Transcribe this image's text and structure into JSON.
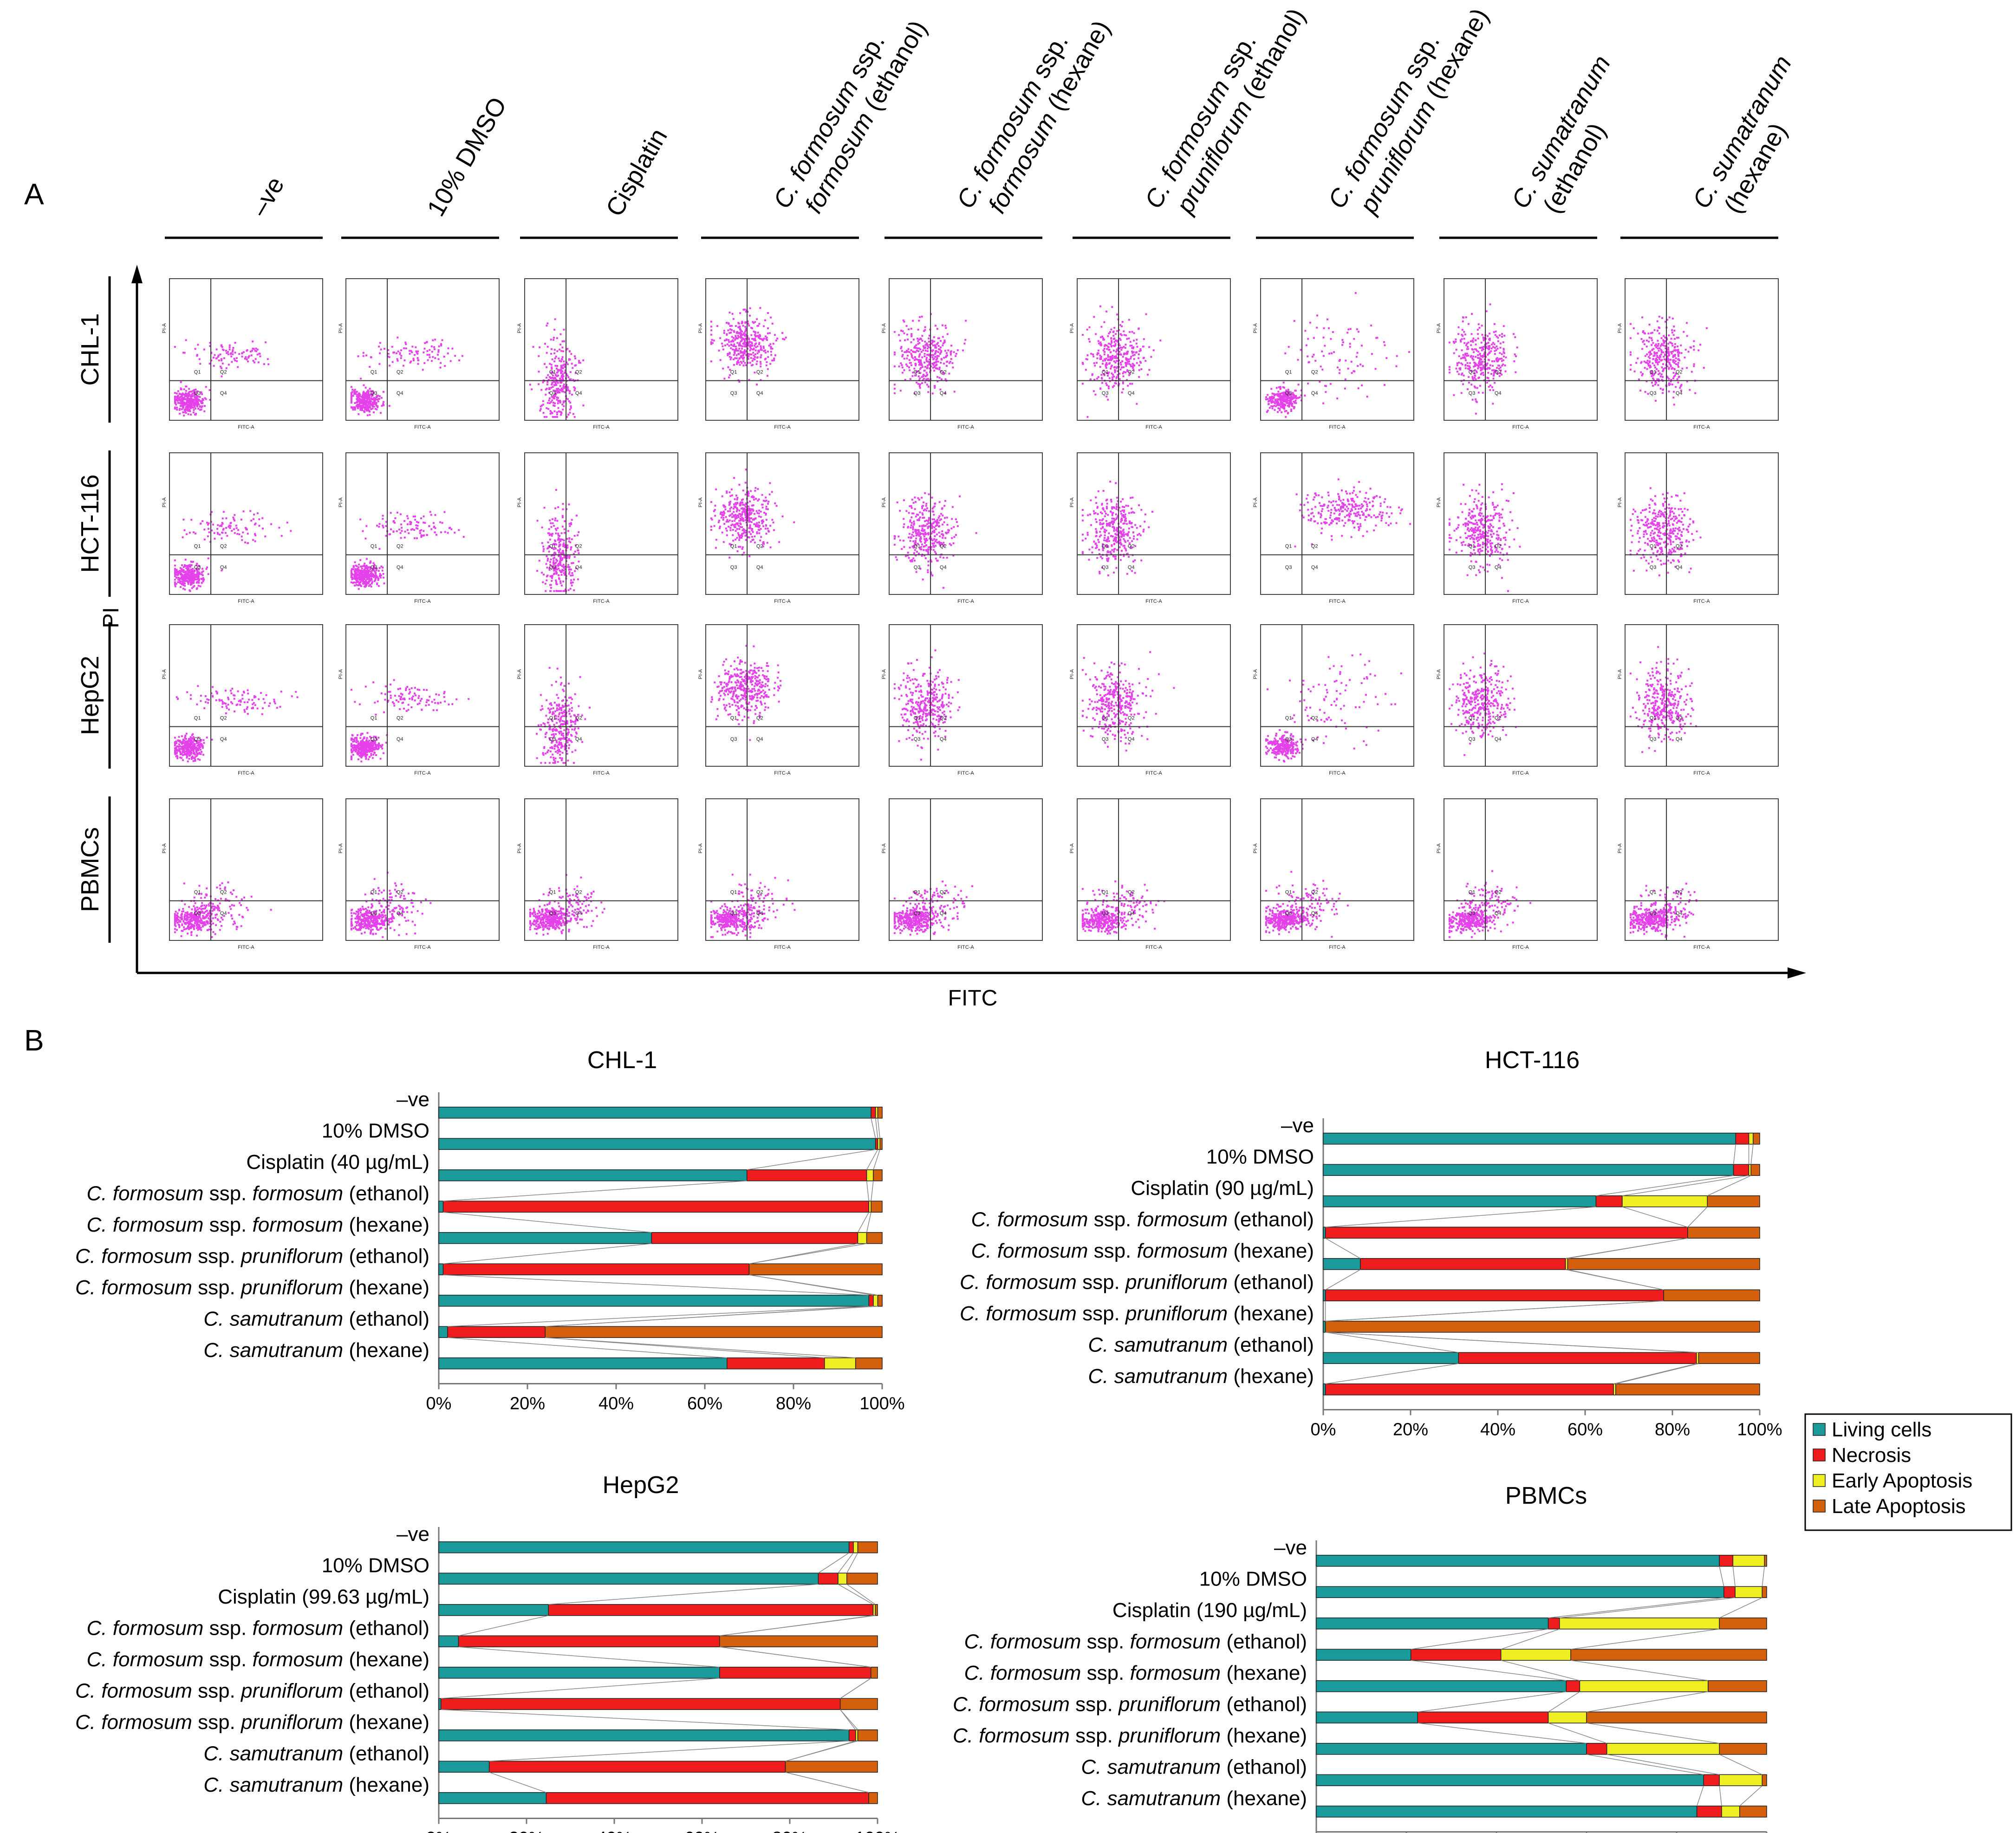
{
  "panel_a": {
    "letter": "A",
    "columns": [
      {
        "plain": "–ve"
      },
      {
        "plain": "10% DMSO"
      },
      {
        "plain": "Cisplatin"
      },
      {
        "line1_it": "C. formosum",
        "line1_rest": " ssp.",
        "line2_it": "formosum",
        "line2_rest": " (ethanol)"
      },
      {
        "line1_it": "C. formosum",
        "line1_rest": " ssp.",
        "line2_it": "formosum",
        "line2_rest": " (hexane)"
      },
      {
        "line1_it": "C. formosum",
        "line1_rest": " ssp.",
        "line2_it": "pruniflorum",
        "line2_rest": " (ethanol)"
      },
      {
        "line1_it": "C. formosum",
        "line1_rest": " ssp.",
        "line2_it": "pruniflorum",
        "line2_rest": " (hexane)"
      },
      {
        "line1_it": "C. sumatranum",
        "line1_rest": "",
        "line2_it": "",
        "line2_rest": "(ethanol)"
      },
      {
        "line1_it": "C. sumatranum",
        "line1_rest": "",
        "line2_it": "",
        "line2_rest": "(hexane)"
      }
    ],
    "rows": [
      "CHL-1",
      "HCT-116",
      "HepG2",
      "PBMCs"
    ],
    "y_axis_label": "PI",
    "x_axis_label": "FITC",
    "mini_x_label": "FITC-A",
    "mini_y_label": "PI-A",
    "quadrants": [
      "Q1",
      "Q2",
      "Q3",
      "Q4"
    ],
    "dot_color": "#e020e8"
  },
  "panel_b": {
    "letter": "B",
    "colors": {
      "living": "#1a9a9a",
      "necrosis": "#ee1c1c",
      "early": "#eeee22",
      "late": "#d4600e"
    },
    "legend": [
      "Living cells",
      "Necrosis",
      "Early Apoptosis",
      "Late Apoptosis"
    ],
    "x_ticks": [
      "0%",
      "20%",
      "40%",
      "60%",
      "80%",
      "100%"
    ]
  },
  "chart_data": [
    {
      "type": "bar",
      "stacked": true,
      "orientation": "horizontal",
      "title": "CHL-1",
      "categories": [
        [
          {
            "t": "–ve"
          }
        ],
        [
          {
            "t": "10% DMSO"
          }
        ],
        [
          {
            "t": "Cisplatin (40 µg/mL)"
          }
        ],
        [
          {
            "t": "C. formosum",
            "i": true
          },
          {
            "t": " ssp. "
          },
          {
            "t": "formosum",
            "i": true
          },
          {
            "t": " (ethanol)"
          }
        ],
        [
          {
            "t": "C. formosum",
            "i": true
          },
          {
            "t": " ssp. "
          },
          {
            "t": "formosum",
            "i": true
          },
          {
            "t": " (hexane)"
          }
        ],
        [
          {
            "t": "C. formosum",
            "i": true
          },
          {
            "t": " ssp. "
          },
          {
            "t": "pruniflorum",
            "i": true
          },
          {
            "t": " (ethanol)"
          }
        ],
        [
          {
            "t": "C. formosum",
            "i": true
          },
          {
            "t": " ssp. "
          },
          {
            "t": "pruniflorum",
            "i": true
          },
          {
            "t": " (hexane)"
          }
        ],
        [
          {
            "t": "C. samutranum",
            "i": true
          },
          {
            "t": " (ethanol)"
          }
        ],
        [
          {
            "t": "C. samutranum",
            "i": true
          },
          {
            "t": " (hexane)"
          }
        ]
      ],
      "series": [
        {
          "name": "Living cells",
          "values": [
            97.5,
            98.5,
            69.5,
            1.0,
            48.0,
            1.0,
            97.0,
            2.0,
            65.0
          ]
        },
        {
          "name": "Necrosis",
          "values": [
            1.0,
            0.5,
            27.0,
            96.0,
            46.5,
            69.0,
            1.0,
            22.0,
            22.0
          ]
        },
        {
          "name": "Early Apoptosis",
          "values": [
            0.5,
            0.5,
            1.5,
            0.5,
            2.0,
            0.0,
            1.0,
            0.0,
            7.0
          ]
        },
        {
          "name": "Late Apoptosis",
          "values": [
            1.0,
            0.5,
            2.0,
            2.5,
            3.5,
            30.0,
            1.0,
            76.0,
            6.0
          ]
        }
      ],
      "xlim": [
        0,
        100
      ]
    },
    {
      "type": "bar",
      "stacked": true,
      "orientation": "horizontal",
      "title": "HCT-116",
      "categories": [
        [
          {
            "t": "–ve"
          }
        ],
        [
          {
            "t": "10% DMSO"
          }
        ],
        [
          {
            "t": "Cisplatin (90 µg/mL)"
          }
        ],
        [
          {
            "t": "C. formosum",
            "i": true
          },
          {
            "t": " ssp. "
          },
          {
            "t": "formosum",
            "i": true
          },
          {
            "t": " (ethanol)"
          }
        ],
        [
          {
            "t": "C. formosum",
            "i": true
          },
          {
            "t": " ssp. "
          },
          {
            "t": "formosum",
            "i": true
          },
          {
            "t": " (hexane)"
          }
        ],
        [
          {
            "t": "C. formosum",
            "i": true
          },
          {
            "t": " ssp. "
          },
          {
            "t": "pruniflorum",
            "i": true
          },
          {
            "t": " (ethanol)"
          }
        ],
        [
          {
            "t": "C. formosum",
            "i": true
          },
          {
            "t": " ssp. "
          },
          {
            "t": "pruniflorum",
            "i": true
          },
          {
            "t": " (hexane)"
          }
        ],
        [
          {
            "t": "C. samutranum",
            "i": true
          },
          {
            "t": " (ethanol)"
          }
        ],
        [
          {
            "t": "C. samutranum",
            "i": true
          },
          {
            "t": " (hexane)"
          }
        ]
      ],
      "series": [
        {
          "name": "Living cells",
          "values": [
            94.5,
            94.0,
            62.5,
            0.5,
            8.5,
            0.5,
            0.5,
            31.0,
            0.5
          ]
        },
        {
          "name": "Necrosis",
          "values": [
            3.0,
            3.5,
            6.0,
            83.0,
            47.0,
            77.5,
            0.0,
            54.5,
            66.0
          ]
        },
        {
          "name": "Early Apoptosis",
          "values": [
            1.0,
            0.5,
            19.5,
            0.0,
            0.5,
            0.0,
            0.0,
            0.5,
            0.5
          ]
        },
        {
          "name": "Late Apoptosis",
          "values": [
            1.5,
            2.0,
            12.0,
            16.5,
            44.0,
            22.0,
            99.5,
            14.0,
            33.0
          ]
        }
      ],
      "xlim": [
        0,
        100
      ]
    },
    {
      "type": "bar",
      "stacked": true,
      "orientation": "horizontal",
      "title": "HepG2",
      "categories": [
        [
          {
            "t": "–ve"
          }
        ],
        [
          {
            "t": "10% DMSO"
          }
        ],
        [
          {
            "t": "Cisplatin (99.63 µg/mL)"
          }
        ],
        [
          {
            "t": "C. formosum",
            "i": true
          },
          {
            "t": " ssp. "
          },
          {
            "t": "formosum",
            "i": true
          },
          {
            "t": " (ethanol)"
          }
        ],
        [
          {
            "t": "C. formosum",
            "i": true
          },
          {
            "t": " ssp. "
          },
          {
            "t": "formosum",
            "i": true
          },
          {
            "t": " (hexane)"
          }
        ],
        [
          {
            "t": "C. formosum",
            "i": true
          },
          {
            "t": " ssp. "
          },
          {
            "t": "pruniflorum",
            "i": true
          },
          {
            "t": " (ethanol)"
          }
        ],
        [
          {
            "t": "C. formosum",
            "i": true
          },
          {
            "t": " ssp. "
          },
          {
            "t": "pruniflorum",
            "i": true
          },
          {
            "t": " (hexane)"
          }
        ],
        [
          {
            "t": "C. samutranum",
            "i": true
          },
          {
            "t": " (ethanol)"
          }
        ],
        [
          {
            "t": "C. samutranum",
            "i": true
          },
          {
            "t": " (hexane)"
          }
        ]
      ],
      "series": [
        {
          "name": "Living cells",
          "values": [
            93.5,
            86.5,
            25.0,
            4.5,
            64.0,
            0.5,
            93.5,
            11.5,
            24.5
          ]
        },
        {
          "name": "Necrosis",
          "values": [
            1.0,
            4.5,
            74.0,
            59.5,
            34.5,
            91.0,
            1.5,
            67.5,
            73.5
          ]
        },
        {
          "name": "Early Apoptosis",
          "values": [
            1.0,
            2.0,
            0.5,
            0.0,
            0.0,
            0.0,
            0.5,
            0.0,
            0.0
          ]
        },
        {
          "name": "Late Apoptosis",
          "values": [
            4.5,
            7.0,
            0.5,
            36.0,
            1.5,
            8.5,
            4.5,
            21.0,
            2.0
          ]
        }
      ],
      "xlim": [
        0,
        100
      ]
    },
    {
      "type": "bar",
      "stacked": true,
      "orientation": "horizontal",
      "title": "PBMCs",
      "categories": [
        [
          {
            "t": "–ve"
          }
        ],
        [
          {
            "t": "10% DMSO"
          }
        ],
        [
          {
            "t": "Cisplatin (190 µg/mL)"
          }
        ],
        [
          {
            "t": "C. formosum",
            "i": true
          },
          {
            "t": " ssp. "
          },
          {
            "t": "formosum",
            "i": true
          },
          {
            "t": " (ethanol)"
          }
        ],
        [
          {
            "t": "C. formosum",
            "i": true
          },
          {
            "t": " ssp. "
          },
          {
            "t": "formosum",
            "i": true
          },
          {
            "t": " (hexane)"
          }
        ],
        [
          {
            "t": "C. formosum",
            "i": true
          },
          {
            "t": " ssp. "
          },
          {
            "t": "pruniflorum",
            "i": true
          },
          {
            "t": " (ethanol)"
          }
        ],
        [
          {
            "t": "C. formosum",
            "i": true
          },
          {
            "t": " ssp. "
          },
          {
            "t": "pruniflorum",
            "i": true
          },
          {
            "t": " (hexane)"
          }
        ],
        [
          {
            "t": "C. samutranum",
            "i": true
          },
          {
            "t": " (ethanol)"
          }
        ],
        [
          {
            "t": "C. samutranum",
            "i": true
          },
          {
            "t": " (hexane)"
          }
        ]
      ],
      "series": [
        {
          "name": "Living cells",
          "values": [
            89.5,
            90.5,
            51.5,
            21.0,
            55.5,
            22.5,
            60.0,
            86.0,
            84.5
          ]
        },
        {
          "name": "Necrosis",
          "values": [
            3.0,
            2.5,
            2.5,
            20.0,
            3.0,
            29.0,
            4.5,
            3.5,
            5.5
          ]
        },
        {
          "name": "Early Apoptosis",
          "values": [
            7.0,
            6.0,
            35.5,
            15.5,
            28.5,
            8.5,
            25.0,
            9.5,
            4.0
          ]
        },
        {
          "name": "Late Apoptosis",
          "values": [
            0.5,
            1.0,
            10.5,
            43.5,
            13.0,
            40.0,
            10.5,
            1.0,
            6.0
          ]
        }
      ],
      "xlim": [
        0,
        100
      ]
    }
  ]
}
